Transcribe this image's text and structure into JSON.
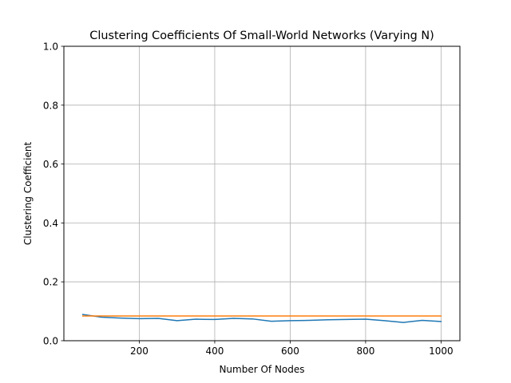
{
  "chart_data": {
    "type": "line",
    "title": "Clustering Coefficients Of Small-World Networks (Varying N)",
    "xlabel": "Number Of Nodes",
    "ylabel": "Clustering Coefficient",
    "xlim": [
      0,
      1050
    ],
    "ylim": [
      0,
      1.0
    ],
    "x_ticks": [
      200,
      400,
      600,
      800,
      1000
    ],
    "y_ticks": [
      0.0,
      0.2,
      0.4,
      0.6,
      0.8,
      1.0
    ],
    "x_tick_labels": [
      "200",
      "400",
      "600",
      "800",
      "1000"
    ],
    "y_tick_labels": [
      "0.0",
      "0.2",
      "0.4",
      "0.6",
      "0.8",
      "1.0"
    ],
    "grid": true,
    "x": [
      50,
      100,
      150,
      200,
      250,
      300,
      350,
      400,
      450,
      500,
      550,
      600,
      650,
      700,
      750,
      800,
      850,
      900,
      950,
      1000
    ],
    "series": [
      {
        "color": "#1f77b4",
        "values": [
          0.089,
          0.08,
          0.077,
          0.075,
          0.076,
          0.068,
          0.073,
          0.072,
          0.076,
          0.074,
          0.066,
          0.068,
          0.069,
          0.071,
          0.072,
          0.073,
          0.068,
          0.062,
          0.069,
          0.065
        ]
      },
      {
        "color": "#ff7f0e",
        "values": [
          0.084,
          0.084,
          0.084,
          0.084,
          0.084,
          0.084,
          0.084,
          0.084,
          0.084,
          0.084,
          0.084,
          0.084,
          0.084,
          0.084,
          0.084,
          0.084,
          0.084,
          0.084,
          0.084,
          0.084
        ]
      }
    ]
  }
}
